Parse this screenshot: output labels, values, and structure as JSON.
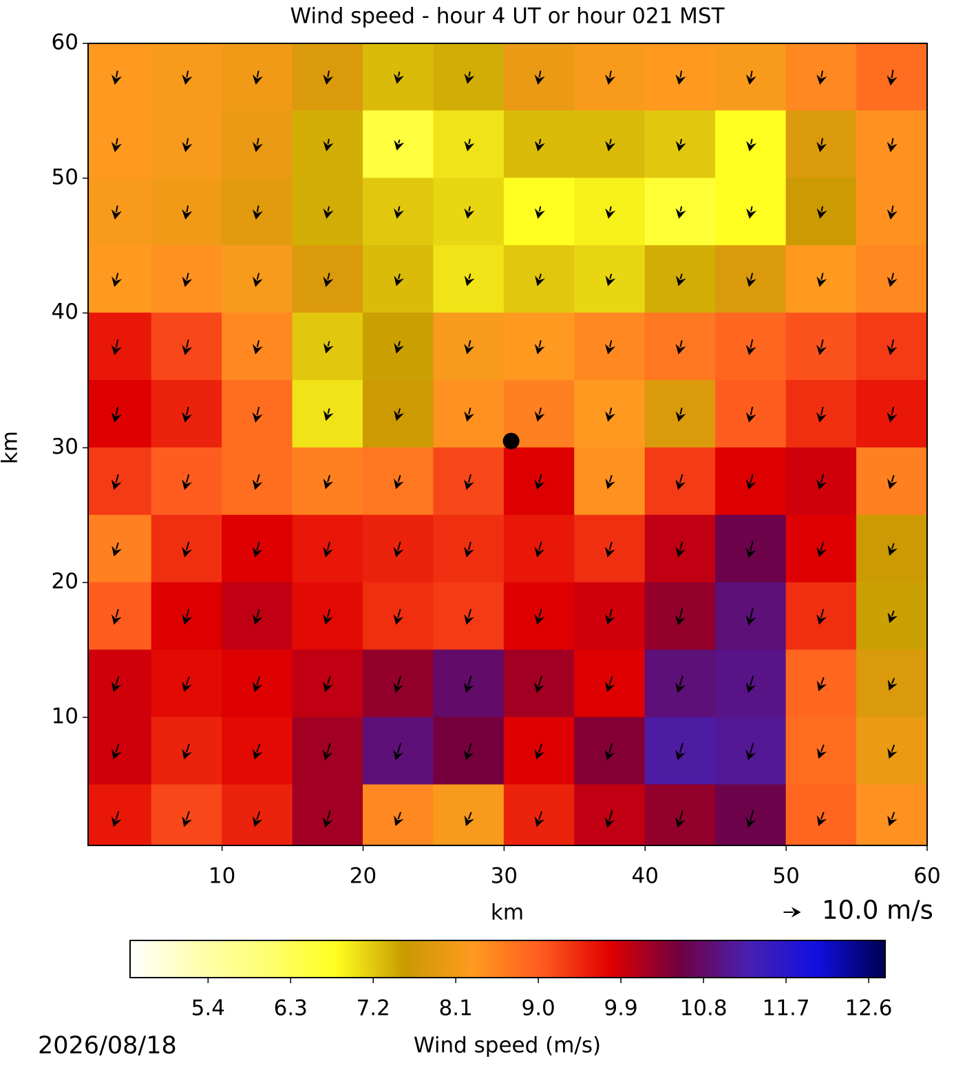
{
  "chart_data": {
    "type": "heatmap",
    "title": "Wind speed - hour 4 UT or hour 021 MST",
    "xlabel": "km",
    "ylabel": "km",
    "xlim": [
      0.5,
      60
    ],
    "ylim": [
      0.5,
      60
    ],
    "xticks": [
      10,
      20,
      30,
      40,
      50,
      60
    ],
    "yticks": [
      10,
      20,
      30,
      40,
      50,
      60
    ],
    "x": [
      2.5,
      7.5,
      12.5,
      17.5,
      22.5,
      27.5,
      32.5,
      37.5,
      42.5,
      47.5,
      52.5,
      57.5
    ],
    "y": [
      57.5,
      52.5,
      47.5,
      42.5,
      37.5,
      32.5,
      27.5,
      22.5,
      17.5,
      12.5,
      7.5,
      2.5
    ],
    "z": [
      [
        8.3,
        8.2,
        8.1,
        7.8,
        7.3,
        7.4,
        8.0,
        8.2,
        8.3,
        8.2,
        8.5,
        8.8
      ],
      [
        8.3,
        8.2,
        8.0,
        7.4,
        6.5,
        7.0,
        7.3,
        7.3,
        7.2,
        6.8,
        7.8,
        8.4
      ],
      [
        8.2,
        8.1,
        7.9,
        7.4,
        7.2,
        7.1,
        6.8,
        6.9,
        6.6,
        6.8,
        7.6,
        8.4
      ],
      [
        8.3,
        8.4,
        8.2,
        7.8,
        7.3,
        7.0,
        7.2,
        7.1,
        7.4,
        7.8,
        8.3,
        8.5
      ],
      [
        9.6,
        9.2,
        8.5,
        7.2,
        7.5,
        8.2,
        8.3,
        8.5,
        8.7,
        8.9,
        9.1,
        9.3
      ],
      [
        9.8,
        9.5,
        8.8,
        7.0,
        7.6,
        8.4,
        8.6,
        8.3,
        7.8,
        9.0,
        9.4,
        9.6
      ],
      [
        9.3,
        9.0,
        8.8,
        8.6,
        8.7,
        9.2,
        9.8,
        8.4,
        9.3,
        9.8,
        9.9,
        8.6
      ],
      [
        8.6,
        9.4,
        9.8,
        9.6,
        9.5,
        9.4,
        9.6,
        9.4,
        10.0,
        10.6,
        9.8,
        7.6
      ],
      [
        9.0,
        9.8,
        10.0,
        9.7,
        9.4,
        9.3,
        9.8,
        9.9,
        10.3,
        10.9,
        9.4,
        7.5
      ],
      [
        9.9,
        9.7,
        9.8,
        10.0,
        10.3,
        10.8,
        10.2,
        9.8,
        10.9,
        11.0,
        8.9,
        7.8
      ],
      [
        9.9,
        9.5,
        9.7,
        10.2,
        10.9,
        10.5,
        9.8,
        10.4,
        11.2,
        11.1,
        8.8,
        8.0
      ],
      [
        9.6,
        9.2,
        9.5,
        10.2,
        8.5,
        8.2,
        9.5,
        10.0,
        10.3,
        10.6,
        8.9,
        8.4
      ]
    ],
    "u": [
      [
        -1.5,
        -1.5,
        -1.5,
        -1.5,
        -1.5,
        -1.5,
        -1.5,
        -1.5,
        -1.5,
        -1.5,
        -1.5,
        -1.5
      ],
      [
        -1.5,
        -1.5,
        -1.5,
        -1.5,
        -1.5,
        -1.5,
        -1.5,
        -1.5,
        -1.5,
        -1.5,
        -1.5,
        -1.5
      ],
      [
        -1.5,
        -1.5,
        -1.5,
        -1.5,
        -1.5,
        -1.5,
        -1.5,
        -1.5,
        -1.5,
        -1.5,
        -1.5,
        -1.5
      ],
      [
        -2,
        -2,
        -2,
        -2,
        -2,
        -2,
        -2,
        -2,
        -2,
        -2,
        -2,
        -2
      ],
      [
        -2,
        -2,
        -2,
        -2,
        -2,
        -2,
        -2,
        -2,
        -2,
        -2,
        -2,
        -2
      ],
      [
        -2,
        -2,
        -2,
        -2,
        -2,
        -2,
        -2,
        -2,
        -2,
        -2,
        -2,
        -2
      ],
      [
        -2.5,
        -2.5,
        -2.5,
        -2.5,
        -2.5,
        -2.5,
        -2.5,
        -2.5,
        -2.5,
        -2.5,
        -2.5,
        -2.5
      ],
      [
        -2.5,
        -2.5,
        -2.5,
        -2.5,
        -2.5,
        -2.5,
        -2.5,
        -2.5,
        -2.5,
        -2.5,
        -2.5,
        -2.5
      ],
      [
        -2.5,
        -2.5,
        -2.5,
        -2.5,
        -2.5,
        -2.5,
        -2.5,
        -2.5,
        -2.5,
        -2.5,
        -2.5,
        -2.5
      ],
      [
        -3,
        -3,
        -3,
        -3,
        -3,
        -3,
        -3,
        -3,
        -3,
        -3,
        -3,
        -3
      ],
      [
        -3,
        -3,
        -3,
        -3,
        -3,
        -3,
        -3,
        -3,
        -3,
        -3,
        -3,
        -3
      ],
      [
        -3,
        -3,
        -3,
        -3,
        -3,
        -3,
        -3,
        -3,
        -3,
        -3,
        -3,
        -3
      ]
    ],
    "v": [
      [
        -8,
        -8,
        -8,
        -8,
        -7,
        -7,
        -8,
        -8,
        -8,
        -8,
        -8,
        -9
      ],
      [
        -8,
        -8,
        -8,
        -7,
        -6,
        -7,
        -7,
        -7,
        -7,
        -7,
        -8,
        -8
      ],
      [
        -8,
        -8,
        -8,
        -7,
        -7,
        -7,
        -7,
        -7,
        -7,
        -7,
        -7,
        -8
      ],
      [
        -8,
        -8,
        -8,
        -8,
        -7,
        -7,
        -7,
        -7,
        -7,
        -8,
        -8,
        -8
      ],
      [
        -9,
        -9,
        -8,
        -7,
        -7,
        -8,
        -8,
        -8,
        -8,
        -9,
        -9,
        -9
      ],
      [
        -9,
        -9,
        -9,
        -7,
        -7,
        -8,
        -8,
        -8,
        -8,
        -9,
        -9,
        -9
      ],
      [
        -9,
        -9,
        -9,
        -8,
        -8,
        -9,
        -9,
        -8,
        -9,
        -9,
        -9,
        -8
      ],
      [
        -8,
        -9,
        -9,
        -9,
        -9,
        -9,
        -9,
        -9,
        -9,
        -10,
        -9,
        -7
      ],
      [
        -9,
        -9,
        -9,
        -9,
        -9,
        -9,
        -9,
        -9,
        -10,
        -10,
        -9,
        -7
      ],
      [
        -9,
        -9,
        -9,
        -9,
        -10,
        -10,
        -10,
        -9,
        -10,
        -10,
        -8,
        -7
      ],
      [
        -9,
        -9,
        -9,
        -10,
        -10,
        -10,
        -9,
        -10,
        -10,
        -10,
        -8,
        -8
      ],
      [
        -9,
        -9,
        -9,
        -10,
        -8,
        -8,
        -9,
        -10,
        -10,
        -10,
        -8,
        -8
      ]
    ],
    "marker": {
      "x": 30.5,
      "y": 30.5
    },
    "quiver_key": {
      "value": 10,
      "label": "10.0 m/s"
    },
    "colormap": [
      "#ffffff",
      "#ffffb0",
      "#ffff70",
      "#ffff20",
      "#c89a00",
      "#ff9a20",
      "#ff5a20",
      "#e00000",
      "#700040",
      "#4a20b0",
      "#1010e0",
      "#000050"
    ],
    "colorbar": {
      "label": "Wind speed (m/s)",
      "lim": [
        4.55,
        12.78
      ],
      "ticks": [
        5.4,
        6.3,
        7.2,
        8.1,
        {
          "value": 9,
          "label": "9.0"
        },
        9.9,
        10.8,
        11.7,
        12.6
      ]
    },
    "date": "2026/08/18"
  }
}
